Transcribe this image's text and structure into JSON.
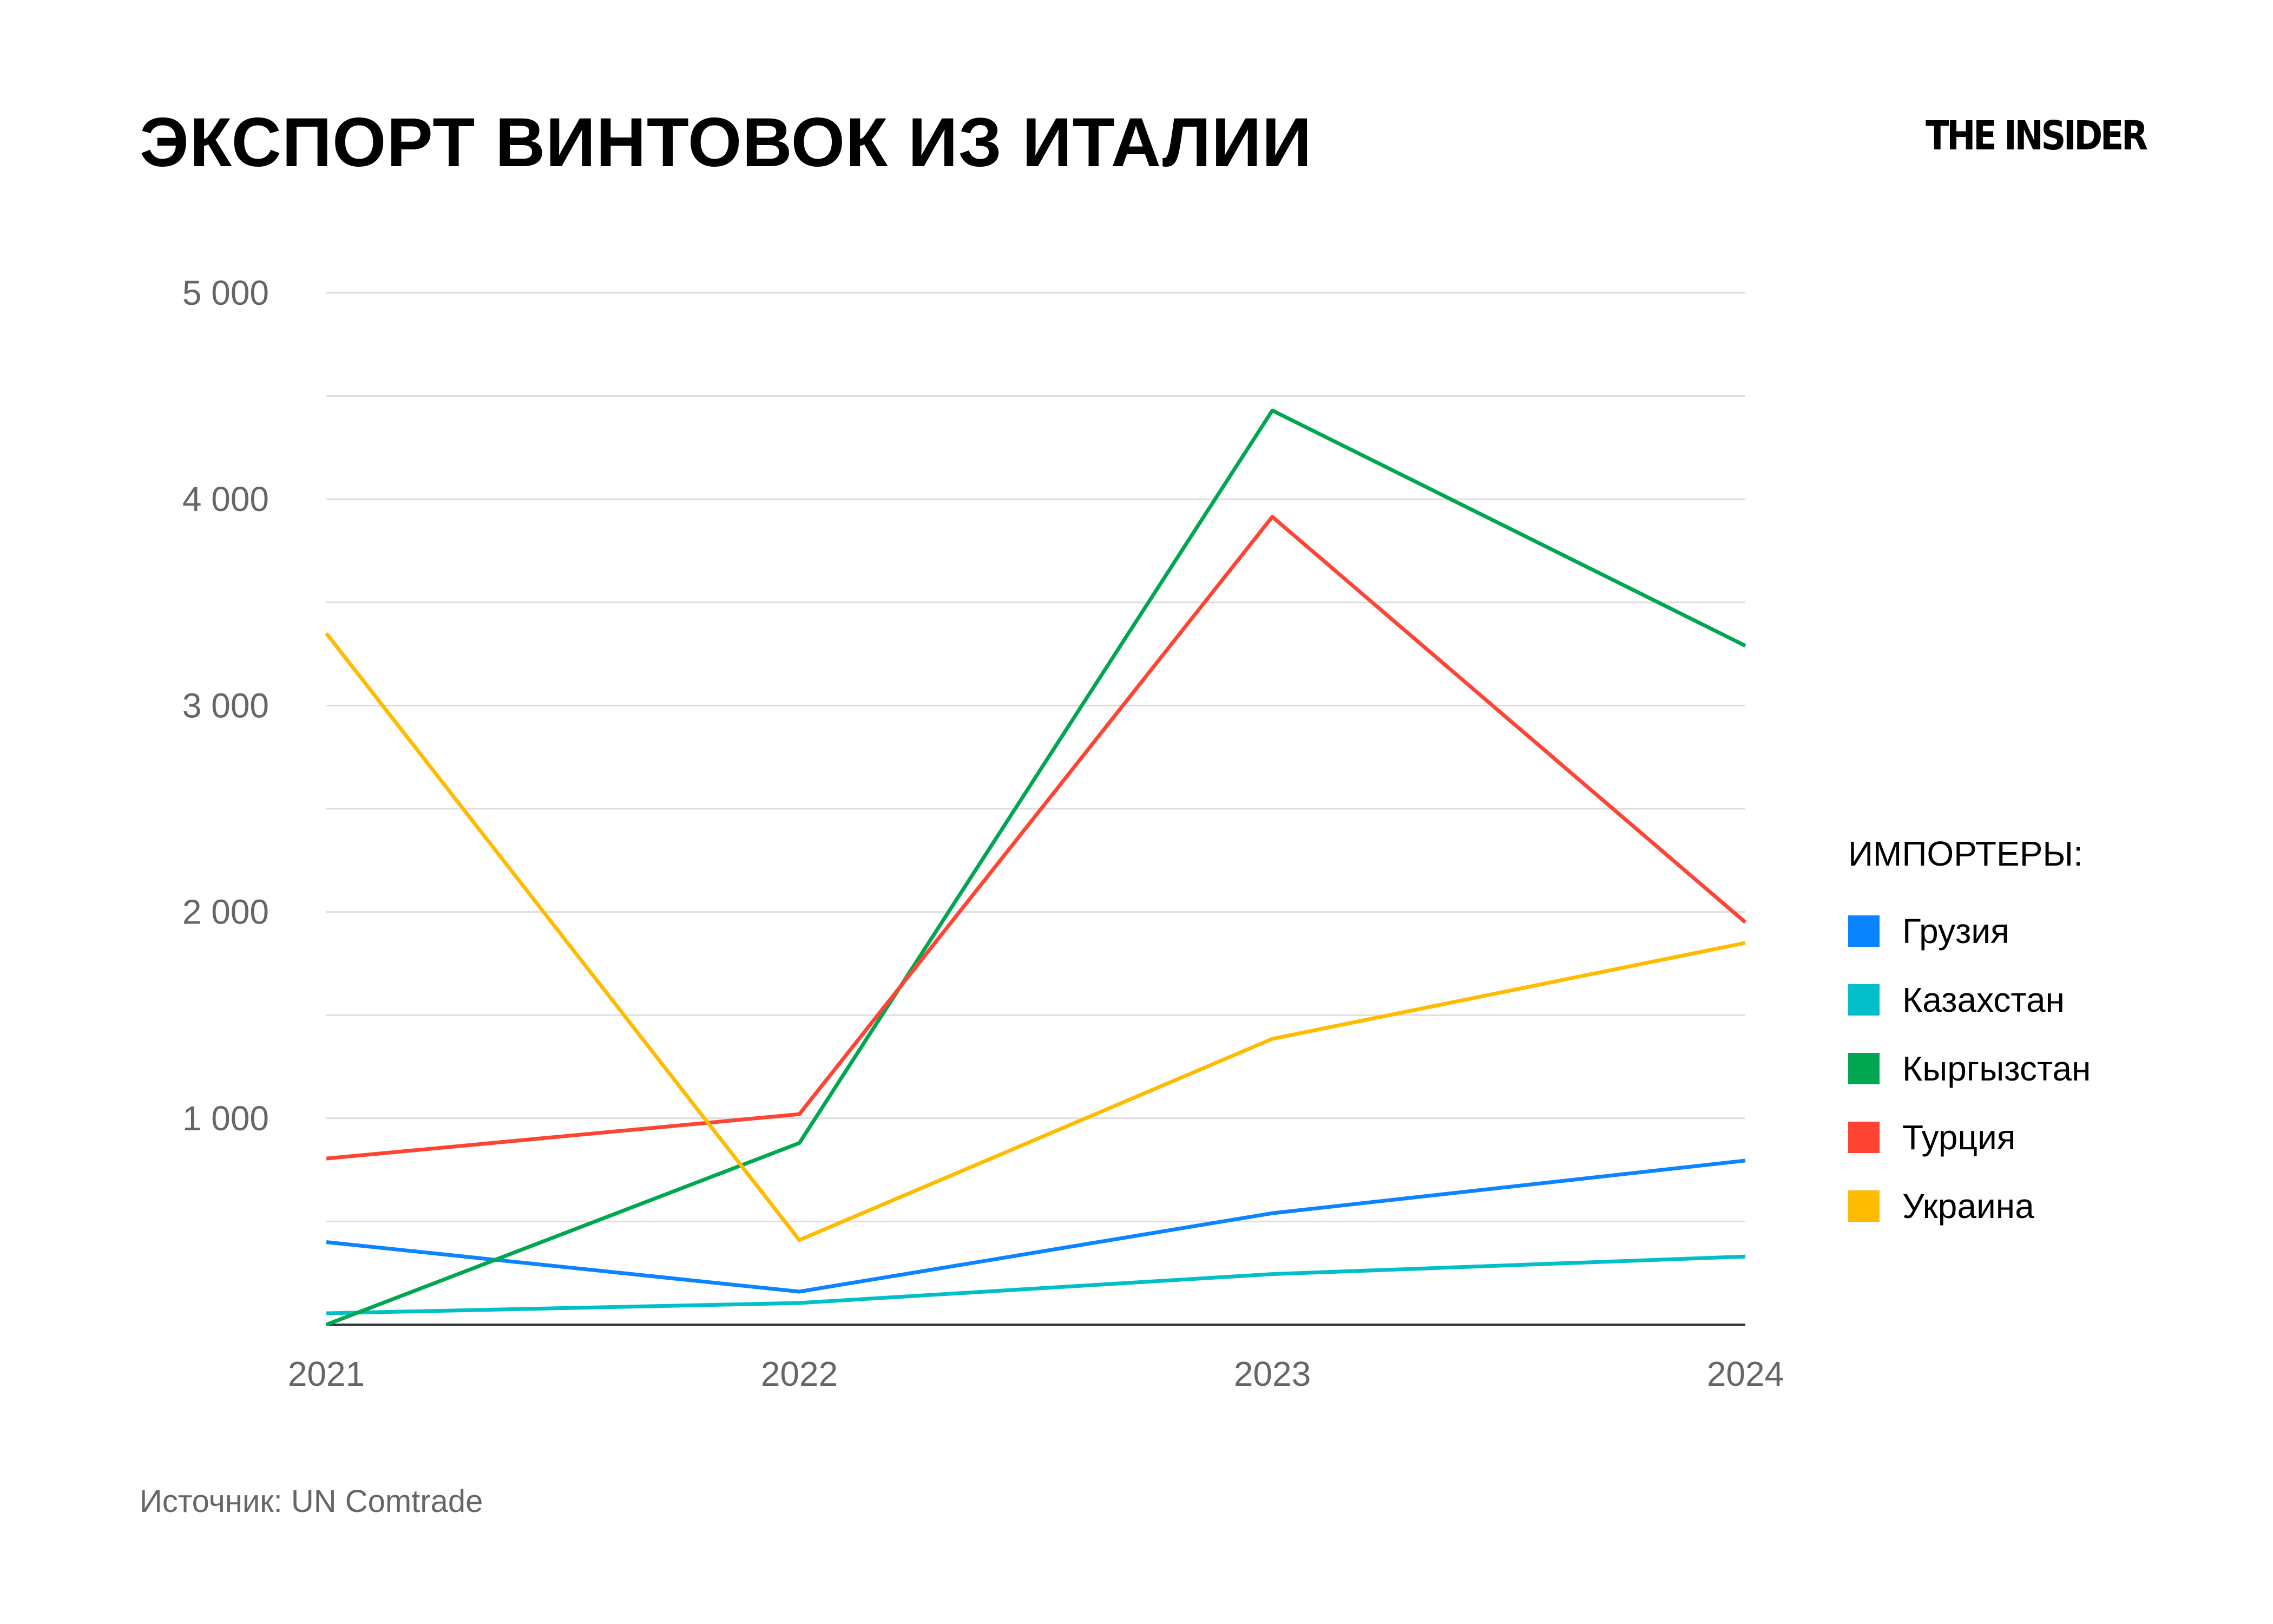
{
  "title": "ЭКСПОРТ ВИНТОВОК ИЗ ИТАЛИИ",
  "logo": "THE INSIDER",
  "source": "Источник: UN Comtrade",
  "chart_data": {
    "type": "line",
    "title": "ЭКСПОРТ ВИНТОВОК ИЗ ИТАЛИИ",
    "xlabel": "",
    "ylabel": "",
    "x": [
      "2021",
      "2022",
      "2023",
      "2024"
    ],
    "ylim": [
      0,
      5000
    ],
    "yticks": [
      1000,
      2000,
      3000,
      4000,
      5000
    ],
    "ytick_labels": [
      "1 000",
      "2 000",
      "3 000",
      "4 000",
      "5 000"
    ],
    "minor_grid_step": 500,
    "grid": true,
    "legend_title": "ИМПОРТЕРЫ:",
    "legend_position": "right",
    "series": [
      {
        "name": "Грузия",
        "color": "#0A84FF",
        "values": [
          400,
          160,
          540,
          795
        ]
      },
      {
        "name": "Казахстан",
        "color": "#00BFC8",
        "values": [
          55,
          105,
          245,
          330
        ]
      },
      {
        "name": "Кыргызстан",
        "color": "#00A650",
        "values": [
          0,
          880,
          4430,
          3290
        ]
      },
      {
        "name": "Турция",
        "color": "#FF4433",
        "values": [
          805,
          1020,
          3915,
          1950
        ]
      },
      {
        "name": "Украина",
        "color": "#FFBB00",
        "values": [
          3350,
          410,
          1385,
          1850
        ]
      }
    ]
  }
}
